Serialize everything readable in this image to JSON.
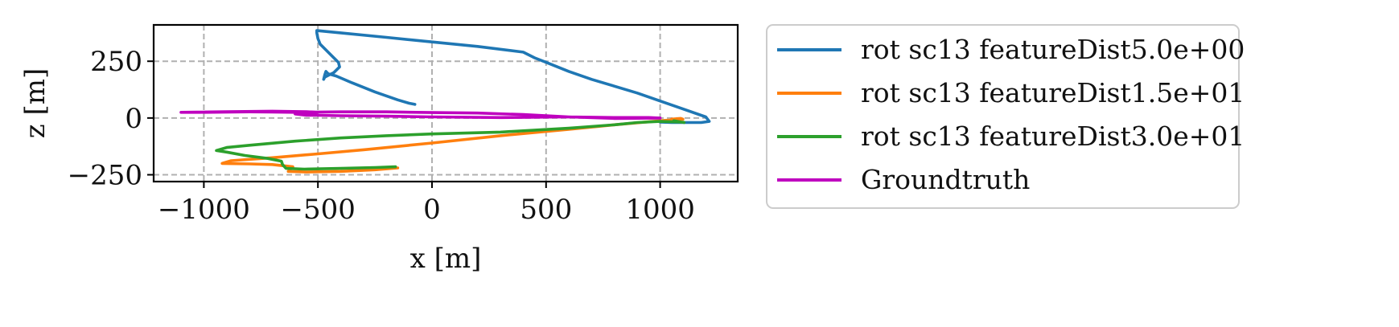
{
  "chart_data": {
    "type": "line",
    "title": "",
    "xlabel": "x [m]",
    "ylabel": "z [m]",
    "xlim": [
      -1220,
      1340
    ],
    "ylim": [
      -280,
      410
    ],
    "xticks": [
      -1000,
      -500,
      0,
      500,
      1000
    ],
    "xtick_labels": [
      "−1000",
      "−500",
      "0",
      "500",
      "1000"
    ],
    "yticks": [
      -250,
      0,
      250
    ],
    "ytick_labels": [
      "−250",
      "0",
      "250"
    ],
    "grid": true,
    "legend_position": "outside-right",
    "series": [
      {
        "name": "rot sc13 featureDist5.0e+00",
        "color": "#1f77b4",
        "points": [
          [
            -75,
            60
          ],
          [
            -100,
            65
          ],
          [
            -150,
            80
          ],
          [
            -250,
            115
          ],
          [
            -350,
            155
          ],
          [
            -420,
            185
          ],
          [
            -455,
            195
          ],
          [
            -465,
            205
          ],
          [
            -470,
            190
          ],
          [
            -475,
            170
          ],
          [
            -470,
            180
          ],
          [
            -430,
            200
          ],
          [
            -405,
            225
          ],
          [
            -410,
            245
          ],
          [
            -430,
            265
          ],
          [
            -460,
            295
          ],
          [
            -490,
            325
          ],
          [
            -500,
            350
          ],
          [
            -505,
            375
          ],
          [
            -505,
            385
          ],
          [
            -400,
            375
          ],
          [
            -200,
            355
          ],
          [
            0,
            335
          ],
          [
            200,
            315
          ],
          [
            400,
            290
          ],
          [
            450,
            265
          ],
          [
            500,
            245
          ],
          [
            600,
            205
          ],
          [
            700,
            170
          ],
          [
            900,
            110
          ],
          [
            1100,
            40
          ],
          [
            1200,
            5
          ],
          [
            1215,
            -15
          ],
          [
            1180,
            -20
          ],
          [
            1050,
            -20
          ],
          [
            1000,
            -18
          ]
        ]
      },
      {
        "name": "rot sc13 featureDist1.5e+01",
        "color": "#ff7f0e",
        "points": [
          [
            -150,
            -220
          ],
          [
            -250,
            -228
          ],
          [
            -400,
            -235
          ],
          [
            -550,
            -238
          ],
          [
            -630,
            -235
          ],
          [
            -610,
            -215
          ],
          [
            -700,
            -205
          ],
          [
            -800,
            -202
          ],
          [
            -920,
            -200
          ],
          [
            -880,
            -188
          ],
          [
            -700,
            -175
          ],
          [
            -500,
            -158
          ],
          [
            -300,
            -140
          ],
          [
            0,
            -110
          ],
          [
            300,
            -78
          ],
          [
            600,
            -50
          ],
          [
            800,
            -30
          ],
          [
            1000,
            -12
          ],
          [
            1100,
            -5
          ],
          [
            1090,
            -2
          ],
          [
            1050,
            -5
          ]
        ]
      },
      {
        "name": "rot sc13 featureDist3.0e+01",
        "color": "#2ca02c",
        "points": [
          [
            -160,
            -215
          ],
          [
            -250,
            -218
          ],
          [
            -400,
            -222
          ],
          [
            -560,
            -225
          ],
          [
            -640,
            -222
          ],
          [
            -655,
            -205
          ],
          [
            -660,
            -190
          ],
          [
            -720,
            -178
          ],
          [
            -820,
            -165
          ],
          [
            -900,
            -150
          ],
          [
            -945,
            -143
          ],
          [
            -900,
            -130
          ],
          [
            -800,
            -120
          ],
          [
            -600,
            -102
          ],
          [
            -400,
            -88
          ],
          [
            -200,
            -78
          ],
          [
            0,
            -70
          ],
          [
            300,
            -62
          ],
          [
            600,
            -45
          ],
          [
            800,
            -30
          ],
          [
            900,
            -20
          ],
          [
            1000,
            -15
          ],
          [
            1100,
            -18
          ],
          [
            1105,
            -20
          ],
          [
            1060,
            -12
          ]
        ]
      },
      {
        "name": "Groundtruth",
        "color": "#bf00bf",
        "points": [
          [
            -1100,
            25
          ],
          [
            -900,
            28
          ],
          [
            -700,
            30
          ],
          [
            -550,
            28
          ],
          [
            -500,
            25
          ],
          [
            -600,
            18
          ],
          [
            -550,
            12
          ],
          [
            -500,
            12
          ],
          [
            -400,
            10
          ],
          [
            -200,
            8
          ],
          [
            0,
            5
          ],
          [
            300,
            2
          ],
          [
            600,
            5
          ],
          [
            800,
            2
          ],
          [
            950,
            2
          ],
          [
            1000,
            0
          ],
          [
            800,
            -2
          ],
          [
            600,
            5
          ],
          [
            400,
            15
          ],
          [
            200,
            22
          ],
          [
            0,
            24
          ],
          [
            -200,
            27
          ],
          [
            -400,
            27
          ],
          [
            -600,
            25
          ],
          [
            -700,
            26
          ],
          [
            -800,
            27
          ],
          [
            -1000,
            25
          ],
          [
            -1100,
            25
          ]
        ]
      }
    ]
  }
}
